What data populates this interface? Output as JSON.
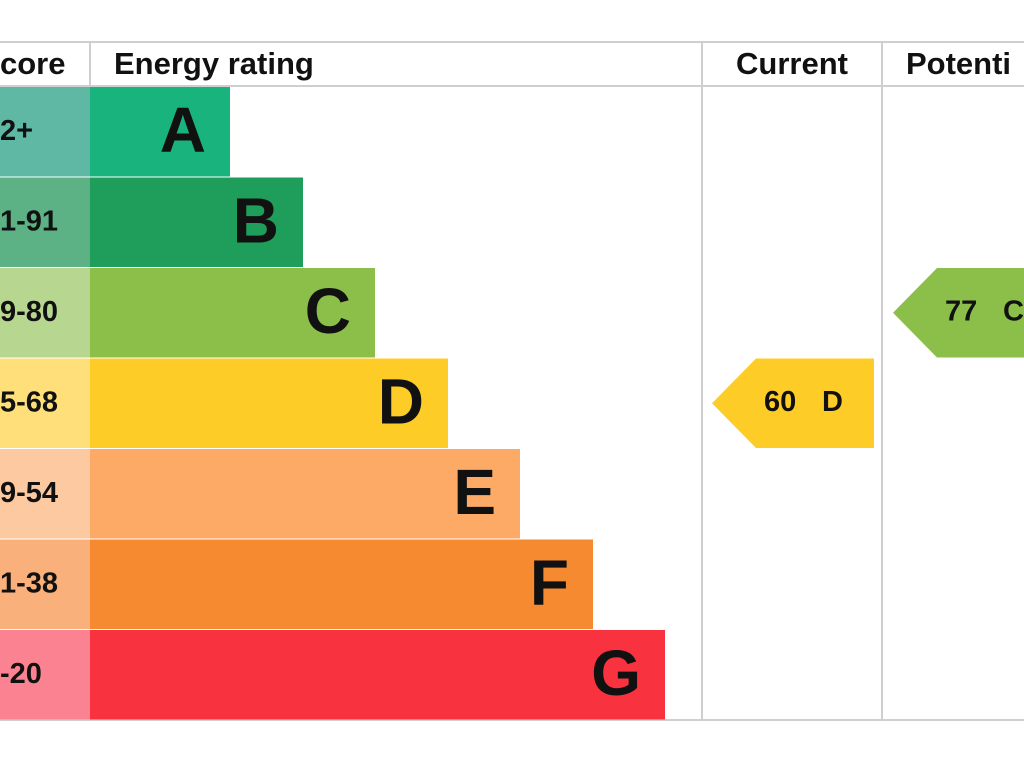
{
  "header": {
    "score": "core",
    "rating": "Energy rating",
    "current": "Current",
    "potential": "Potenti"
  },
  "rows": [
    {
      "score": "2+",
      "letter": "A",
      "color": "#19b37d",
      "score_color": "#5fb8a4"
    },
    {
      "score": "1-91",
      "letter": "B",
      "color": "#1e9e5a",
      "score_color": "#5cb285"
    },
    {
      "score": "9-80",
      "letter": "C",
      "color": "#8cbf4a",
      "score_color": "#b7d68f"
    },
    {
      "score": "5-68",
      "letter": "D",
      "color": "#fecc26",
      "score_color": "#fedf79"
    },
    {
      "score": "9-54",
      "letter": "E",
      "color": "#fcaa65",
      "score_color": "#fdc9a1"
    },
    {
      "score": "1-38",
      "letter": "F",
      "color": "#f68a31",
      "score_color": "#f9b07a"
    },
    {
      "score": "-20",
      "letter": "G",
      "color": "#f9323f",
      "score_color": "#fb8391"
    }
  ],
  "current": {
    "value": 60,
    "letter": "D"
  },
  "potential": {
    "value": 77,
    "letter": "C"
  }
}
